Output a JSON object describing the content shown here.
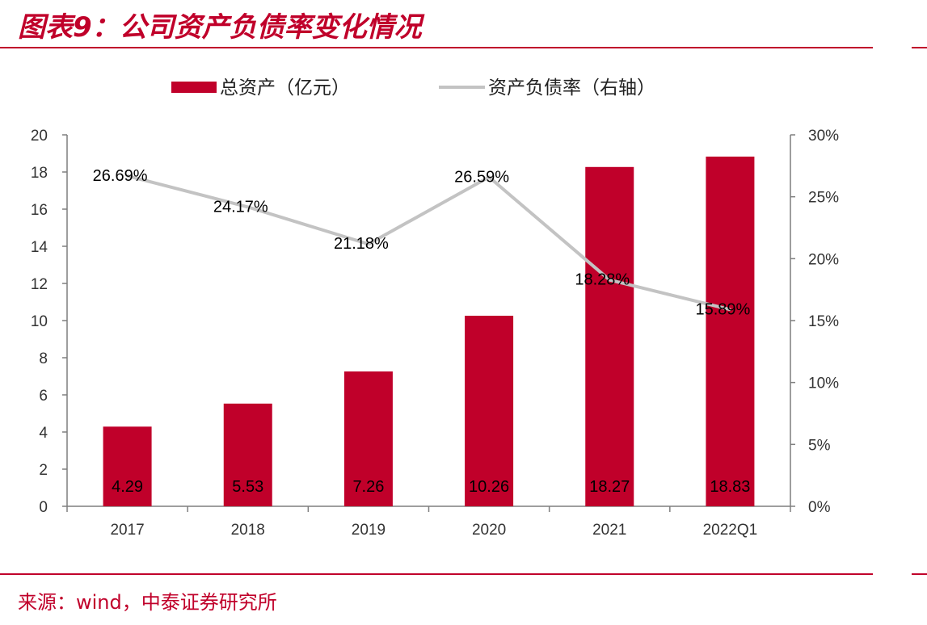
{
  "header": {
    "title": "图表9：公司资产负债率变化情况"
  },
  "footer": {
    "source": "来源：wind，中泰证券研究所"
  },
  "colors": {
    "bar": "#c0002a",
    "line": "#c3c3c3",
    "accent": "#c0002a"
  },
  "chart_data": {
    "type": "bar",
    "title": "",
    "categories": [
      "2017",
      "2018",
      "2019",
      "2020",
      "2021",
      "2022Q1"
    ],
    "series": [
      {
        "name": "总资产（亿元）",
        "type": "bar",
        "axis": "left",
        "values": [
          4.29,
          5.53,
          7.26,
          10.26,
          18.27,
          18.83
        ],
        "labels": [
          "4.29",
          "5.53",
          "7.26",
          "10.26",
          "18.27",
          "18.83"
        ]
      },
      {
        "name": "资产负债率（右轴）",
        "type": "line",
        "axis": "right",
        "values": [
          26.69,
          24.17,
          21.18,
          26.59,
          18.28,
          15.89
        ],
        "labels": [
          "26.69%",
          "24.17%",
          "21.18%",
          "26.59%",
          "18.28%",
          "15.89%"
        ]
      }
    ],
    "y_left": {
      "min": 0,
      "max": 20,
      "ticks": [
        "0",
        "2",
        "4",
        "6",
        "8",
        "10",
        "12",
        "14",
        "16",
        "18",
        "20"
      ]
    },
    "y_right": {
      "min": 0,
      "max": 30,
      "ticks": [
        "0%",
        "5%",
        "10%",
        "15%",
        "20%",
        "25%",
        "30%"
      ]
    },
    "legend": "top-center",
    "grid": false
  }
}
